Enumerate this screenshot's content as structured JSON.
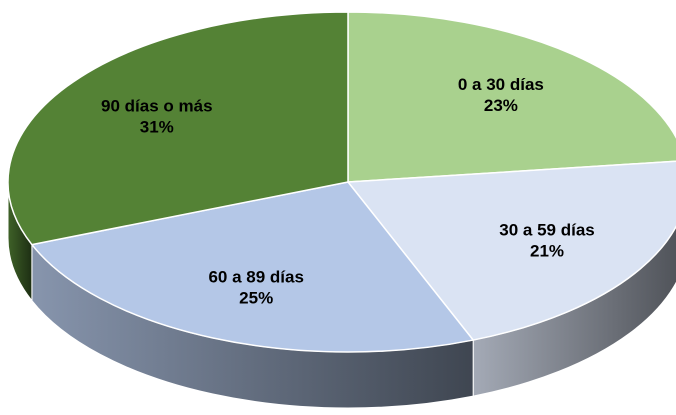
{
  "chart_data": {
    "type": "pie",
    "categories": [
      "0 a 30 días",
      "30 a 59 días",
      "60 a 89 días",
      "90 días o más"
    ],
    "values": [
      23,
      21,
      25,
      31
    ],
    "value_labels": [
      "23%",
      "21%",
      "25%",
      "31%"
    ],
    "colors": [
      "#a9d18e",
      "#dae3f3",
      "#b4c7e7",
      "#548235"
    ]
  }
}
